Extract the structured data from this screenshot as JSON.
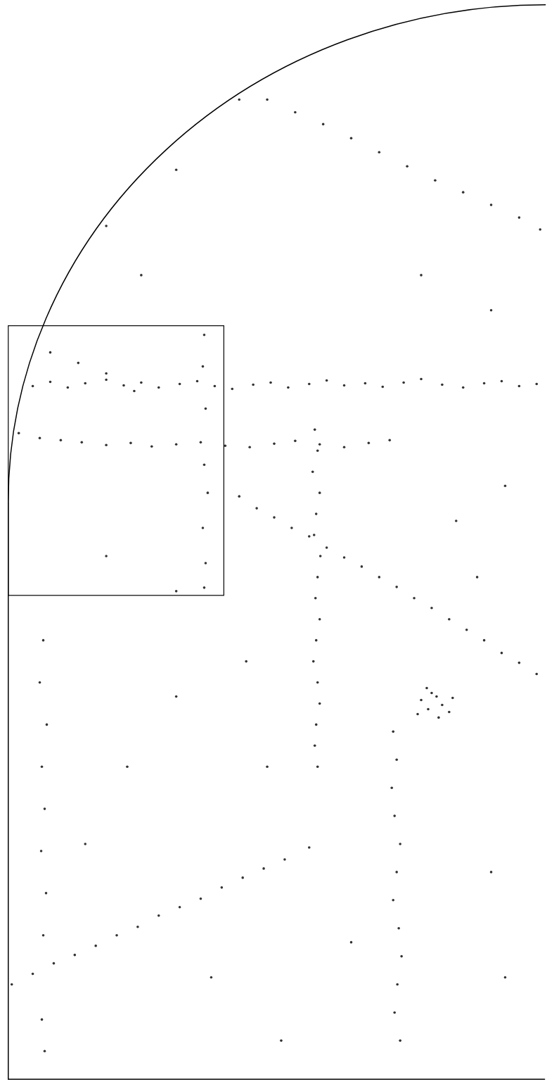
{
  "chart_data": {
    "type": "scatter",
    "xlim": [
      0,
      778
    ],
    "ylim": [
      0,
      1540
    ],
    "tick_labels": false,
    "grid": false,
    "color": "#333333",
    "marker": "circle",
    "x": [
      45,
      70,
      95,
      120,
      150,
      175,
      200,
      225,
      255,
      280,
      305,
      330,
      360,
      385,
      410,
      440,
      465,
      490,
      520,
      545,
      575,
      600,
      630,
      660,
      690,
      715,
      740,
      765,
      25,
      55,
      85,
      115,
      150,
      185,
      215,
      250,
      285,
      320,
      355,
      390,
      420,
      455,
      490,
      525,
      555,
      340,
      365,
      390,
      415,
      440,
      465,
      490,
      515,
      540,
      565,
      590,
      615,
      640,
      665,
      690,
      715,
      740,
      765,
      600,
      610,
      622,
      630,
      615,
      640,
      595,
      625,
      645,
      608,
      448,
      452,
      445,
      455,
      450,
      447,
      456,
      452,
      449,
      455,
      450,
      446,
      452,
      455,
      450,
      448,
      452,
      15,
      45,
      75,
      105,
      135,
      165,
      195,
      225,
      255,
      285,
      315,
      345,
      375,
      405,
      440,
      560,
      565,
      558,
      562,
      570,
      565,
      560,
      568,
      572,
      566,
      562,
      570,
      340,
      380,
      420,
      460,
      500,
      540,
      580,
      620,
      660,
      700,
      740,
      770,
      70,
      110,
      150,
      190,
      290,
      288,
      292,
      290,
      295,
      288,
      292,
      290,
      60,
      55,
      65,
      58,
      62,
      57,
      64,
      60,
      58,
      62,
      150,
      250,
      200,
      600,
      700,
      720,
      650,
      350,
      250,
      150,
      180,
      300,
      400,
      700,
      720,
      500,
      380,
      250,
      120,
      680
    ],
    "values": [
      992,
      998,
      990,
      996,
      1001,
      993,
      997,
      990,
      995,
      999,
      992,
      988,
      994,
      997,
      990,
      995,
      1000,
      993,
      996,
      991,
      997,
      1002,
      994,
      990,
      996,
      999,
      992,
      995,
      925,
      918,
      915,
      912,
      908,
      911,
      906,
      909,
      912,
      907,
      905,
      910,
      914,
      909,
      905,
      911,
      915,
      835,
      818,
      805,
      790,
      778,
      762,
      748,
      735,
      720,
      706,
      690,
      676,
      660,
      645,
      630,
      612,
      598,
      582,
      545,
      532,
      550,
      538,
      555,
      528,
      525,
      520,
      548,
      562,
      930,
      900,
      870,
      840,
      810,
      780,
      750,
      720,
      690,
      660,
      630,
      600,
      570,
      540,
      510,
      480,
      450,
      140,
      155,
      170,
      182,
      195,
      210,
      222,
      238,
      250,
      262,
      278,
      292,
      305,
      318,
      335,
      500,
      460,
      420,
      380,
      340,
      300,
      260,
      220,
      180,
      140,
      100,
      60,
      1400,
      1400,
      1382,
      1365,
      1345,
      1325,
      1305,
      1285,
      1268,
      1250,
      1232,
      1215,
      1040,
      1025,
      1010,
      985,
      1065,
      1020,
      960,
      880,
      840,
      790,
      740,
      705,
      630,
      570,
      510,
      450,
      390,
      330,
      270,
      210,
      90,
      45,
      1220,
      1300,
      1150,
      1150,
      1100,
      850,
      800,
      600,
      700,
      750,
      450,
      150,
      60,
      300,
      150,
      200,
      450,
      550,
      340,
      720
    ]
  }
}
